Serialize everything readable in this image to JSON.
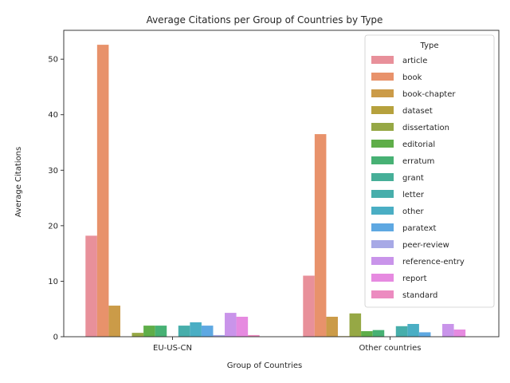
{
  "chart_data": {
    "type": "bar",
    "title": "Average Citations per Group of Countries by Type",
    "xlabel": "Group of Countries",
    "ylabel": "Average Citations",
    "categories": [
      "EU-US-CN",
      "Other countries"
    ],
    "ylim": [
      0,
      55.2
    ],
    "yticks": [
      0,
      10,
      20,
      30,
      40,
      50
    ],
    "grid": false,
    "legend": {
      "title": "Type",
      "position": "top-right"
    },
    "series": [
      {
        "name": "article",
        "color": "#e8909a",
        "values": [
          18.2,
          11.0
        ]
      },
      {
        "name": "book",
        "color": "#e8926b",
        "values": [
          52.6,
          36.5
        ]
      },
      {
        "name": "book-chapter",
        "color": "#cb9b48",
        "values": [
          5.6,
          3.6
        ]
      },
      {
        "name": "dataset",
        "color": "#b6a13d",
        "values": [
          0.0,
          0.1
        ]
      },
      {
        "name": "dissertation",
        "color": "#96a845",
        "values": [
          0.7,
          4.2
        ]
      },
      {
        "name": "editorial",
        "color": "#5fae49",
        "values": [
          2.0,
          1.0
        ]
      },
      {
        "name": "erratum",
        "color": "#47b174",
        "values": [
          2.0,
          1.2
        ]
      },
      {
        "name": "grant",
        "color": "#46af98",
        "values": [
          0.0,
          0.0
        ]
      },
      {
        "name": "letter",
        "color": "#47aeab",
        "values": [
          2.0,
          1.9
        ]
      },
      {
        "name": "other",
        "color": "#4aaec4",
        "values": [
          2.6,
          2.3
        ]
      },
      {
        "name": "paratext",
        "color": "#5ea8e2",
        "values": [
          2.0,
          0.8
        ]
      },
      {
        "name": "peer-review",
        "color": "#a7a9e6",
        "values": [
          0.3,
          0.0
        ]
      },
      {
        "name": "reference-entry",
        "color": "#c994ea",
        "values": [
          4.3,
          2.3
        ]
      },
      {
        "name": "report",
        "color": "#e68ae0",
        "values": [
          3.6,
          1.3
        ]
      },
      {
        "name": "standard",
        "color": "#ec8bc0",
        "values": [
          0.3,
          0.0
        ]
      }
    ]
  }
}
